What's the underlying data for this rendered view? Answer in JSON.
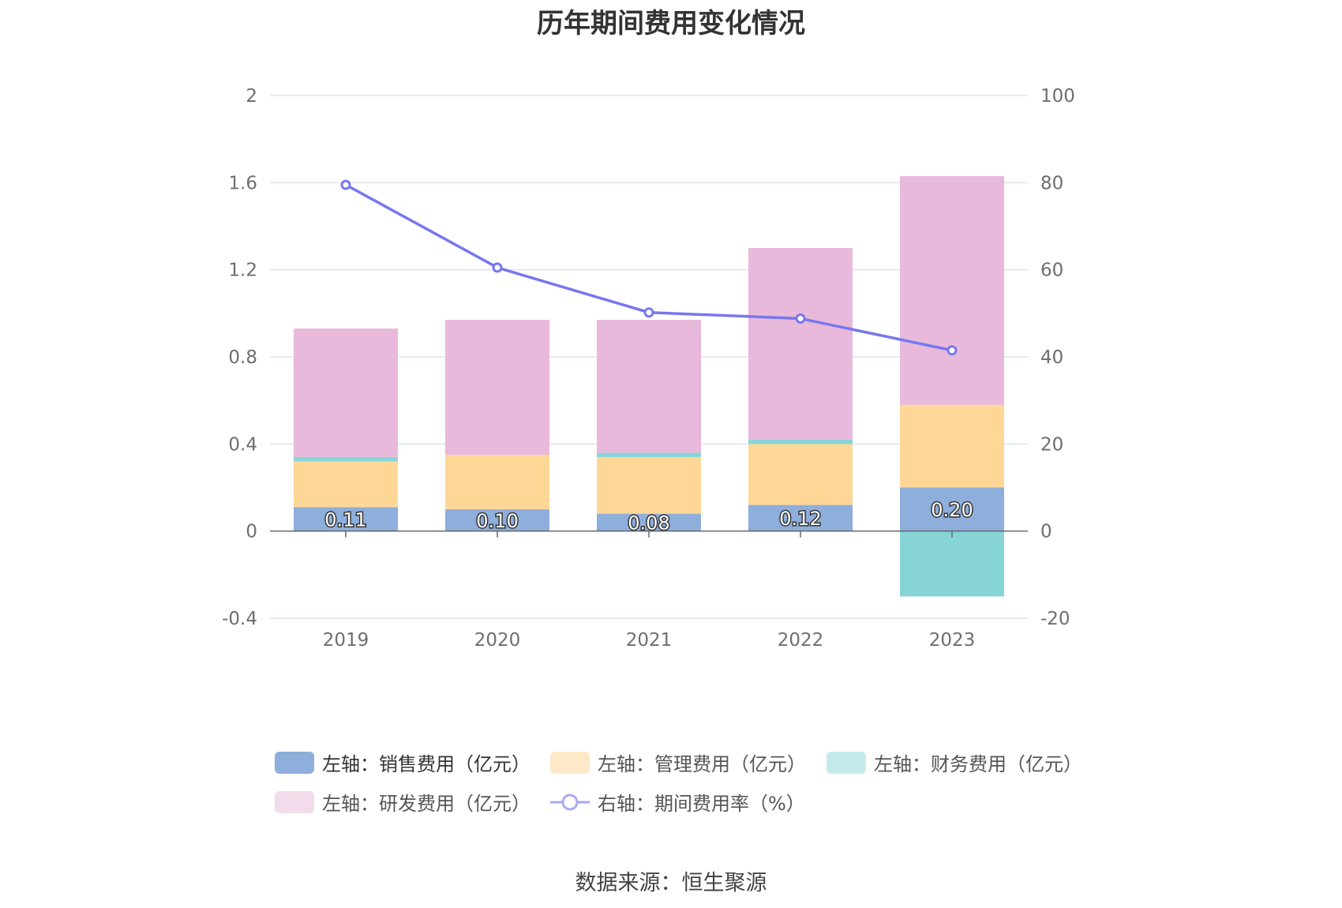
{
  "title": "历年期间费用变化情况",
  "source": "数据来源：恒生聚源",
  "colors": {
    "sales": "#8eaedb",
    "admin": "#fed797",
    "finance": "#87d4d7",
    "rd": "#e8b9da",
    "rate": "#7777ee",
    "grid": "#dde3f0",
    "axis": "#666666"
  },
  "legend": [
    {
      "label": "左轴：销售费用（亿元）",
      "color": "#8eaedb",
      "kind": "bar"
    },
    {
      "label": "左轴：管理费用（亿元）",
      "color": "#fde9c7",
      "kind": "bar"
    },
    {
      "label": "左轴：财务费用（亿元）",
      "color": "#c4ebec",
      "kind": "bar"
    },
    {
      "label": "左轴：研发费用（亿元）",
      "color": "#f2dbea",
      "kind": "bar"
    },
    {
      "label": "右轴：期间费用率（%）",
      "color": "#a9a9f2",
      "kind": "line"
    }
  ],
  "chart_data": {
    "type": "bar",
    "title": "历年期间费用变化情况",
    "categories": [
      "2019",
      "2020",
      "2021",
      "2022",
      "2023"
    ],
    "series": [
      {
        "name": "左轴：销售费用（亿元）",
        "values": [
          0.11,
          0.1,
          0.08,
          0.12,
          0.2
        ],
        "stack": "left"
      },
      {
        "name": "左轴：管理费用（亿元）",
        "values": [
          0.21,
          0.25,
          0.26,
          0.28,
          0.38
        ],
        "stack": "left"
      },
      {
        "name": "左轴：财务费用（亿元）",
        "values": [
          0.02,
          0.0,
          0.02,
          0.02,
          -0.3
        ],
        "stack": "left"
      },
      {
        "name": "左轴：研发费用（亿元）",
        "values": [
          0.59,
          0.62,
          0.61,
          0.88,
          1.05
        ],
        "stack": "left"
      },
      {
        "name": "右轴：期间费用率（%）",
        "values": [
          79.5,
          60.5,
          50.2,
          48.8,
          41.5
        ],
        "type": "line",
        "axis": "right"
      }
    ],
    "data_labels": [
      "0.11",
      "0.10",
      "0.08",
      "0.12",
      "0.20"
    ],
    "y_left": {
      "min": -0.4,
      "max": 2,
      "ticks": [
        "-0.4",
        "0",
        "0.4",
        "0.8",
        "1.2",
        "1.6",
        "2"
      ]
    },
    "y_right": {
      "min": -20,
      "max": 100,
      "ticks": [
        "-20",
        "0",
        "20",
        "40",
        "60",
        "80",
        "100"
      ]
    },
    "grid": true,
    "legend_position": "bottom"
  }
}
